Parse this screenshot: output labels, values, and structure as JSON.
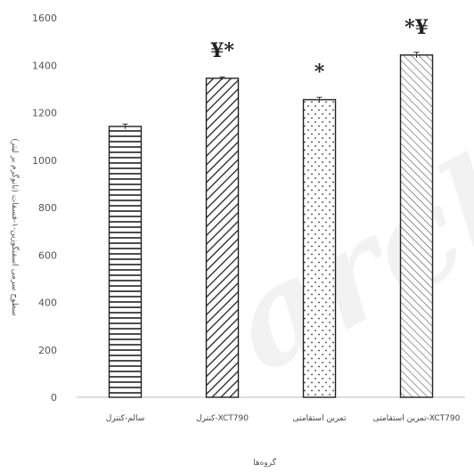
{
  "chart_data": {
    "type": "bar",
    "categories": [
      "سالم-کنترل",
      "کنترل-XCT790",
      "تمرین استقامتی",
      "تمرین استقامتی-XCT790"
    ],
    "values": [
      1142,
      1345,
      1255,
      1443
    ],
    "errors": [
      10,
      6,
      10,
      12
    ],
    "annotations": [
      "",
      "¥*",
      "*",
      "*¥"
    ],
    "xlabel": "گروه‌ها",
    "ylabel": "سطوح سرمی اسفنگوزین-۱-فسفات (نانوگرم بر لیتر)",
    "ylim": [
      0,
      1600
    ],
    "yticks": [
      0,
      200,
      400,
      600,
      800,
      1000,
      1200,
      1400,
      1600
    ],
    "patterns": [
      "horizontal-lines",
      "diagonal-lines-dense",
      "dots",
      "diagonal-lines-sparse"
    ],
    "colors": {
      "bar_fill": "#ffffff",
      "bar_stroke": "#222222",
      "axis": "#bbbbbb",
      "text": "#555555"
    },
    "grid": false,
    "legend": "none"
  },
  "watermark": {
    "text": "archi"
  }
}
